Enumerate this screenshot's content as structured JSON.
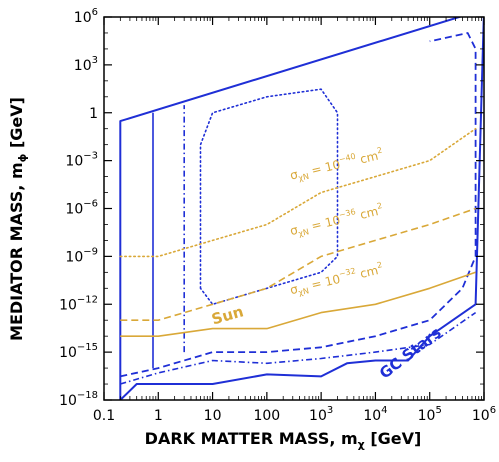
{
  "chart_data": {
    "type": "line",
    "xlabel": "DARK MATTER MASS, m",
    "xlabel_sub": "χ",
    "xlabel_unit": " [GeV]",
    "ylabel": "MEDIATOR MASS, m",
    "ylabel_sub": "ϕ",
    "ylabel_unit": " [GeV]",
    "xscale": "log",
    "yscale": "log",
    "xlim": [
      0.1,
      1000000
    ],
    "ylim": [
      1e-18,
      1000000
    ],
    "x_ticks": [
      {
        "value": 0.1,
        "label": "0.1"
      },
      {
        "value": 1,
        "label": "1"
      },
      {
        "value": 10,
        "label": "10"
      },
      {
        "value": 100,
        "label": "100"
      },
      {
        "value": 1000,
        "label": "10",
        "exp": "3"
      },
      {
        "value": 10000,
        "label": "10",
        "exp": "4"
      },
      {
        "value": 100000,
        "label": "10",
        "exp": "5"
      },
      {
        "value": 1000000,
        "label": "10",
        "exp": "6"
      }
    ],
    "y_ticks": [
      {
        "value": 1e-18,
        "label": "10",
        "exp": "−18"
      },
      {
        "value": 1e-15,
        "label": "10",
        "exp": "−15"
      },
      {
        "value": 1e-12,
        "label": "10",
        "exp": "−12"
      },
      {
        "value": 1e-09,
        "label": "10",
        "exp": "−9"
      },
      {
        "value": 1e-06,
        "label": "10",
        "exp": "−6"
      },
      {
        "value": 0.001,
        "label": "10",
        "exp": "−3"
      },
      {
        "value": 1,
        "label": "1"
      },
      {
        "value": 1000,
        "label": "10",
        "exp": "3"
      },
      {
        "value": 1000000,
        "label": "10",
        "exp": "6"
      }
    ],
    "colors": {
      "gc_stars": "#1f2fd6",
      "sun": "#d9a838"
    },
    "series": [
      {
        "label": "GC Stars",
        "color": "#1f2fd6",
        "style": "solid",
        "width": 2,
        "points": [
          [
            0.2,
            1e-18
          ],
          [
            0.2,
            0.3
          ],
          [
            1000000,
            3000000
          ],
          [
            700000,
            1e-12
          ],
          [
            100000,
            1e-14
          ],
          [
            40000,
            3e-16
          ],
          [
            10000,
            3e-16
          ],
          [
            3000,
            2e-16
          ],
          [
            1000,
            3e-17
          ],
          [
            100,
            4e-17
          ],
          [
            10,
            1e-17
          ],
          [
            1,
            1e-17
          ],
          [
            0.4,
            1e-17
          ],
          [
            0.2,
            1e-18
          ]
        ]
      },
      {
        "color": "#1f2fd6",
        "style": "solid",
        "width": 1.6,
        "points": [
          [
            0.8,
            1e-16
          ],
          [
            0.8,
            1
          ]
        ]
      },
      {
        "color": "#1f2fd6",
        "style": "dashdot",
        "width": 1.6,
        "points": [
          [
            3,
            1e-15
          ],
          [
            3,
            3
          ]
        ]
      },
      {
        "color": "#1f2fd6",
        "style": "dashdot",
        "width": 1.6,
        "points": [
          [
            0.2,
            1e-17
          ],
          [
            1,
            5e-17
          ],
          [
            10,
            3e-16
          ],
          [
            100,
            2e-16
          ],
          [
            1000,
            4e-16
          ],
          [
            10000,
            1e-15
          ],
          [
            100000,
            3e-15
          ],
          [
            700000,
            3e-13
          ]
        ]
      },
      {
        "color": "#1f2fd6",
        "style": "dashed",
        "width": 1.8,
        "points": [
          [
            0.2,
            3e-17
          ],
          [
            1,
            1e-16
          ],
          [
            10,
            1e-15
          ],
          [
            100,
            1e-15
          ],
          [
            1000,
            2e-15
          ],
          [
            10000,
            1e-14
          ],
          [
            100000,
            1e-13
          ],
          [
            400000,
            1e-11
          ],
          [
            700000,
            1e-09
          ],
          [
            700000,
            10000
          ],
          [
            500000,
            100000
          ],
          [
            100000,
            30000
          ]
        ]
      },
      {
        "color": "#1f2fd6",
        "style": "dotted",
        "width": 1.6,
        "points": [
          [
            6,
            1e-11
          ],
          [
            6,
            0.01
          ],
          [
            10,
            1
          ],
          [
            100,
            10
          ],
          [
            1000,
            30
          ],
          [
            2000,
            1
          ],
          [
            2000,
            1e-09
          ],
          [
            1000,
            1e-10
          ],
          [
            100,
            1e-11
          ],
          [
            10,
            1e-12
          ],
          [
            6,
            1e-11
          ]
        ]
      },
      {
        "color": "#d9a838",
        "style": "solid",
        "width": 1.6,
        "points": [
          [
            0.2,
            1e-14
          ],
          [
            1,
            1e-14
          ],
          [
            10,
            3e-14
          ],
          [
            100,
            3e-14
          ],
          [
            1000,
            3e-13
          ],
          [
            10000,
            1e-12
          ],
          [
            100000,
            1e-11
          ],
          [
            700000,
            1e-10
          ]
        ]
      },
      {
        "color": "#d9a838",
        "style": "dashed",
        "width": 1.6,
        "points": [
          [
            0.2,
            1e-13
          ],
          [
            1,
            1e-13
          ],
          [
            10,
            1e-12
          ],
          [
            100,
            1e-11
          ],
          [
            1000,
            1e-09
          ],
          [
            10000,
            1e-08
          ],
          [
            100000,
            1e-07
          ],
          [
            700000,
            1e-06
          ]
        ]
      },
      {
        "color": "#d9a838",
        "style": "dotted",
        "width": 1.6,
        "points": [
          [
            0.2,
            1e-09
          ],
          [
            1,
            1e-09
          ],
          [
            10,
            1e-08
          ],
          [
            100,
            1e-07
          ],
          [
            1000,
            1e-05
          ],
          [
            10000,
            0.0001
          ],
          [
            100000,
            0.001
          ],
          [
            700000,
            0.1
          ]
        ]
      }
    ],
    "annotations": [
      {
        "text": "σ",
        "sub": "χN",
        "mid": " = 10",
        "exp": "−40",
        "tail": " cm",
        "tail_exp": "2",
        "x": 2000,
        "y": 0.0003,
        "color": "#d9a838",
        "rotate": -13
      },
      {
        "text": "σ",
        "sub": "χN",
        "mid": " = 10",
        "exp": "−36",
        "tail": " cm",
        "tail_exp": "2",
        "x": 2000,
        "y": 1e-07,
        "color": "#d9a838",
        "rotate": -13
      },
      {
        "text": "σ",
        "sub": "χN",
        "mid": " = 10",
        "exp": "−32",
        "tail": " cm",
        "tail_exp": "2",
        "x": 2000,
        "y": 2e-11,
        "color": "#d9a838",
        "rotate": -13
      },
      {
        "text": "Sun",
        "x": 20,
        "y": 1e-13,
        "color": "#d9a838",
        "rotate": -16,
        "big": true
      },
      {
        "text": "GC Stars",
        "x": 50000,
        "y": 5e-16,
        "color": "#1f2fd6",
        "rotate": -38,
        "big": true
      }
    ]
  }
}
